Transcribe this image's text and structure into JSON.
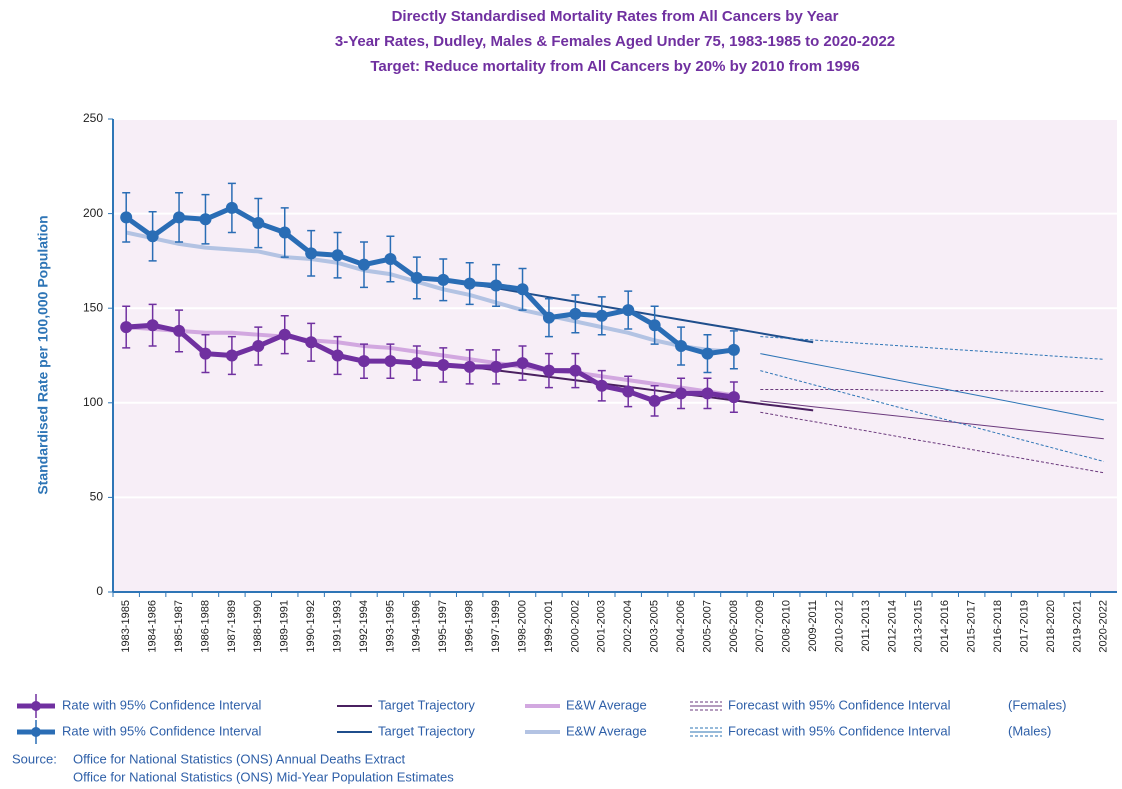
{
  "chart_data": {
    "type": "line",
    "title": "Directly Standardised Mortality Rates from All Cancers by Year",
    "subtitle": [
      "3-Year Rates, Dudley, Males & Females Aged Under 75, 1983-1985 to 2020-2022",
      "Target: Reduce mortality from All Cancers by 20% by 2010 from 1996"
    ],
    "y_label": "Standardised Rate per 100,000 Population",
    "categories": [
      "1983-1985",
      "1984-1986",
      "1985-1987",
      "1986-1988",
      "1987-1989",
      "1988-1990",
      "1989-1991",
      "1990-1992",
      "1991-1993",
      "1992-1994",
      "1993-1995",
      "1994-1996",
      "1995-1997",
      "1996-1998",
      "1997-1999",
      "1998-2000",
      "1999-2001",
      "2000-2002",
      "2001-2003",
      "2002-2004",
      "2003-2005",
      "2004-2006",
      "2005-2007",
      "2006-2008",
      "2007-2009",
      "2008-2010",
      "2009-2011",
      "2010-2012",
      "2011-2013",
      "2012-2014",
      "2013-2015",
      "2014-2016",
      "2015-2017",
      "2016-2018",
      "2017-2019",
      "2018-2020",
      "2019-2021",
      "2020-2022"
    ],
    "ylim": [
      0,
      250
    ],
    "yticks": [
      0,
      50,
      100,
      150,
      200,
      250
    ],
    "grid": true,
    "plot_background": "#f7eef7",
    "series": [
      {
        "name": "Rate with 95% Confidence Interval",
        "color": "#7030a0",
        "width": 5,
        "markers": true,
        "values": [
          140,
          141,
          138,
          126,
          125,
          130,
          136,
          132,
          125,
          122,
          122,
          121,
          120,
          119,
          119,
          121,
          117,
          117,
          109,
          106,
          101,
          105,
          105,
          103,
          null,
          null,
          null,
          null,
          null,
          null,
          null,
          null,
          null,
          null,
          null,
          null,
          null,
          null
        ],
        "errors": [
          11,
          11,
          11,
          10,
          10,
          10,
          10,
          10,
          10,
          9,
          9,
          9,
          9,
          9,
          9,
          9,
          9,
          9,
          8,
          8,
          8,
          8,
          8,
          8,
          null,
          null,
          null,
          null,
          null,
          null,
          null,
          null,
          null,
          null,
          null,
          null,
          null,
          null
        ]
      },
      {
        "name": "Target Trajectory",
        "color": "#4a2060",
        "width": 2,
        "values": [
          null,
          null,
          null,
          null,
          null,
          null,
          null,
          null,
          null,
          null,
          null,
          null,
          null,
          119,
          117.2,
          115.5,
          113.7,
          111.9,
          110.2,
          108.4,
          106.6,
          104.8,
          103.1,
          101.3,
          99.5,
          97.8,
          96,
          null,
          null,
          null,
          null,
          null,
          null,
          null,
          null,
          null,
          null,
          null
        ]
      },
      {
        "name": "E&W Average",
        "color": "#d2a8e0",
        "width": 4,
        "values": [
          140,
          139,
          138,
          137,
          137,
          136,
          135,
          133,
          132,
          130,
          129,
          127,
          125,
          123,
          121,
          119,
          117,
          116,
          114,
          112,
          110,
          108,
          106,
          104,
          null,
          null,
          null,
          null,
          null,
          null,
          null,
          null,
          null,
          null,
          null,
          null,
          null,
          null
        ]
      },
      {
        "name": "Forecast with 95% Confidence Interval",
        "color": "#6b3a7d",
        "width": 1,
        "values": [
          null,
          null,
          null,
          null,
          null,
          null,
          null,
          null,
          null,
          null,
          null,
          null,
          null,
          null,
          null,
          null,
          null,
          null,
          null,
          null,
          null,
          null,
          null,
          null,
          101,
          99.5,
          97.9,
          96.4,
          94.8,
          93.3,
          91.8,
          90.2,
          88.7,
          87.2,
          85.6,
          84.1,
          82.5,
          81
        ],
        "upper": [
          null,
          null,
          null,
          null,
          null,
          null,
          null,
          null,
          null,
          null,
          null,
          null,
          null,
          null,
          null,
          null,
          null,
          null,
          null,
          null,
          null,
          null,
          null,
          null,
          107,
          107,
          107,
          107,
          107,
          106.5,
          106.5,
          106.5,
          106.5,
          106.5,
          106,
          106,
          106,
          106
        ],
        "lower": [
          null,
          null,
          null,
          null,
          null,
          null,
          null,
          null,
          null,
          null,
          null,
          null,
          null,
          null,
          null,
          null,
          null,
          null,
          null,
          null,
          null,
          null,
          null,
          null,
          95,
          92.5,
          90.1,
          87.6,
          85.2,
          82.7,
          80.2,
          77.8,
          75.3,
          72.8,
          70.4,
          67.9,
          65.5,
          63
        ]
      },
      {
        "name": "Rate with 95% Confidence Interval",
        "color": "#2a6db5",
        "width": 5,
        "markers": true,
        "values": [
          198,
          188,
          198,
          197,
          203,
          195,
          190,
          179,
          178,
          173,
          176,
          166,
          165,
          163,
          162,
          160,
          145,
          147,
          146,
          149,
          141,
          130,
          126,
          128,
          null,
          null,
          null,
          null,
          null,
          null,
          null,
          null,
          null,
          null,
          null,
          null,
          null,
          null
        ],
        "errors": [
          13,
          13,
          13,
          13,
          13,
          13,
          13,
          12,
          12,
          12,
          12,
          11,
          11,
          11,
          11,
          11,
          10,
          10,
          10,
          10,
          10,
          10,
          10,
          10,
          null,
          null,
          null,
          null,
          null,
          null,
          null,
          null,
          null,
          null,
          null,
          null,
          null,
          null
        ]
      },
      {
        "name": "Target Trajectory",
        "color": "#1f4e8c",
        "width": 2,
        "values": [
          null,
          null,
          null,
          null,
          null,
          null,
          null,
          null,
          null,
          null,
          null,
          null,
          null,
          163,
          160.6,
          158.2,
          155.8,
          153.5,
          151.1,
          148.7,
          146.3,
          143.9,
          141.5,
          139.2,
          136.8,
          134.4,
          132,
          null,
          null,
          null,
          null,
          null,
          null,
          null,
          null,
          null,
          null,
          null
        ]
      },
      {
        "name": "E&W Average",
        "color": "#b3c3e3",
        "width": 4,
        "values": [
          190,
          187,
          184,
          182,
          181,
          180,
          177,
          176,
          174,
          170,
          168,
          164,
          160,
          157,
          153,
          149,
          146,
          143,
          140,
          137,
          133,
          130,
          128,
          127,
          null,
          null,
          null,
          null,
          null,
          null,
          null,
          null,
          null,
          null,
          null,
          null,
          null,
          null
        ]
      },
      {
        "name": "Forecast with 95% Confidence Interval",
        "color": "#2e75b6",
        "width": 1,
        "values": [
          null,
          null,
          null,
          null,
          null,
          null,
          null,
          null,
          null,
          null,
          null,
          null,
          null,
          null,
          null,
          null,
          null,
          null,
          null,
          null,
          null,
          null,
          null,
          null,
          126,
          123.3,
          120.6,
          117.9,
          115.2,
          112.5,
          109.8,
          107.2,
          104.5,
          101.8,
          99.1,
          96.4,
          93.7,
          91
        ],
        "upper": [
          null,
          null,
          null,
          null,
          null,
          null,
          null,
          null,
          null,
          null,
          null,
          null,
          null,
          null,
          null,
          null,
          null,
          null,
          null,
          null,
          null,
          null,
          null,
          null,
          135,
          134.1,
          133.2,
          132.2,
          131.3,
          130.4,
          129.5,
          128.5,
          127.6,
          126.7,
          125.8,
          124.8,
          123.9,
          123
        ],
        "lower": [
          null,
          null,
          null,
          null,
          null,
          null,
          null,
          null,
          null,
          null,
          null,
          null,
          null,
          null,
          null,
          null,
          null,
          null,
          null,
          null,
          null,
          null,
          null,
          null,
          117,
          113.3,
          109.6,
          105.9,
          102.2,
          98.5,
          94.8,
          91.2,
          87.5,
          83.8,
          80.1,
          76.4,
          72.7,
          69
        ]
      }
    ],
    "legend_suffixes": [
      "(Females)",
      "(Males)"
    ],
    "source_label": "Source:",
    "source_lines": [
      "Office for National Statistics (ONS) Annual Deaths Extract",
      "Office for National Statistics (ONS) Mid-Year Population Estimates"
    ]
  }
}
